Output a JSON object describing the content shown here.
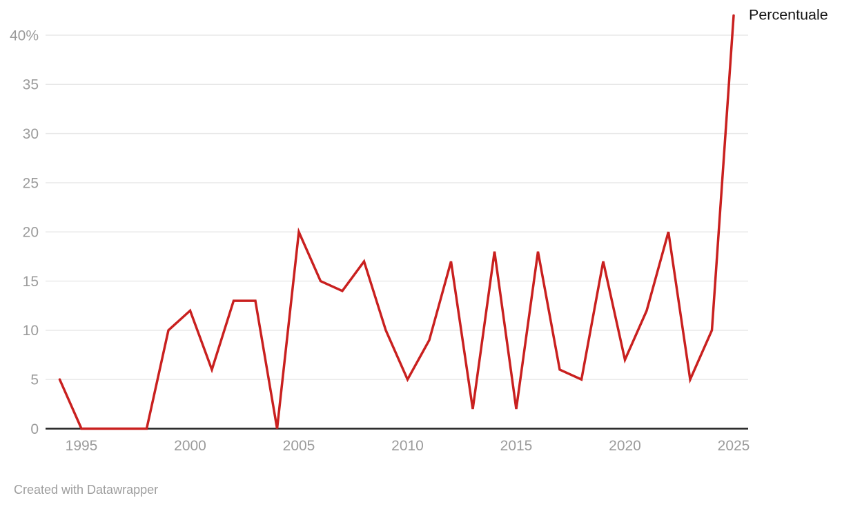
{
  "chart_data": {
    "type": "line",
    "title": "",
    "xlabel": "",
    "ylabel": "",
    "x": [
      1994,
      1995,
      1996,
      1997,
      1998,
      1999,
      2000,
      2001,
      2002,
      2003,
      2004,
      2005,
      2006,
      2007,
      2008,
      2009,
      2010,
      2011,
      2012,
      2013,
      2014,
      2015,
      2016,
      2017,
      2018,
      2019,
      2020,
      2021,
      2022,
      2023,
      2024,
      2025
    ],
    "series": [
      {
        "name": "Percentuale",
        "color": "#c9201f",
        "values": [
          5,
          0,
          0,
          0,
          0,
          10,
          12,
          6,
          13,
          13,
          0,
          20,
          15,
          14,
          17,
          10,
          5,
          9,
          17,
          2,
          18,
          2,
          18,
          6,
          5,
          17,
          7,
          12,
          20,
          5,
          10,
          42
        ]
      }
    ],
    "xlim": [
      1994,
      2025
    ],
    "ylim": [
      0,
      42.5
    ],
    "x_ticks": [
      {
        "value": 1995,
        "label": "1995"
      },
      {
        "value": 2000,
        "label": "2000"
      },
      {
        "value": 2005,
        "label": "2005"
      },
      {
        "value": 2010,
        "label": "2010"
      },
      {
        "value": 2015,
        "label": "2015"
      },
      {
        "value": 2020,
        "label": "2020"
      },
      {
        "value": 2025,
        "label": "2025"
      }
    ],
    "y_ticks": [
      {
        "value": 0,
        "label": "0"
      },
      {
        "value": 5,
        "label": "5"
      },
      {
        "value": 10,
        "label": "10"
      },
      {
        "value": 15,
        "label": "15"
      },
      {
        "value": 20,
        "label": "20"
      },
      {
        "value": 25,
        "label": "25"
      },
      {
        "value": 30,
        "label": "30"
      },
      {
        "value": 35,
        "label": "35"
      },
      {
        "value": 40,
        "label": "40%"
      }
    ],
    "grid": "horizontal",
    "legend_position": "direct-label-right-of-line-end",
    "colors": {
      "line": "#c9201f",
      "gridline": "#e8e8e8",
      "baseline": "#222222",
      "tick_label": "#9b9b9b",
      "series_label": "#161616",
      "footer": "#9e9e9e",
      "background": "#ffffff"
    }
  },
  "series_label": "Percentuale",
  "footer": {
    "credit": "Created with Datawrapper"
  }
}
